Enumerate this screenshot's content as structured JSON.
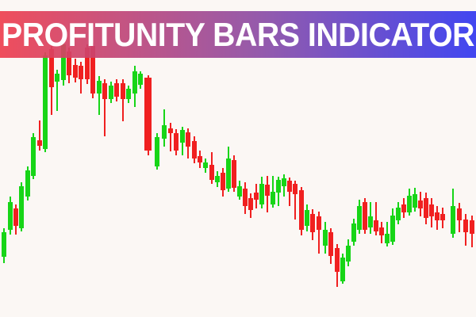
{
  "background_color": "#fbf7f4",
  "banner": {
    "title": "PROFITUNITY BARS INDICATOR",
    "text_color": "#ffffff",
    "gradient_left": "#ee3f4f",
    "gradient_mid": "#8b4da6",
    "gradient_right": "#3137f0"
  },
  "chart_data": {
    "type": "candlestick",
    "title": "PROFITUNITY BARS INDICATOR",
    "xlabel": "",
    "ylabel": "",
    "axes_visible": false,
    "grid": false,
    "legend": false,
    "up_color": "#17d517",
    "down_color": "#f02020",
    "candle_width": 6,
    "coords_note": "each candle = [x, wickTop, bodyTop, bodyBottom, wickBottom, color(g=up,r=down), optionalWidth] in pixel coords of the 600x400 frame, y measured from top",
    "candles": [
      [
        2,
        288,
        293,
        324,
        332,
        "g"
      ],
      [
        10,
        248,
        255,
        290,
        296,
        "g"
      ],
      [
        17,
        258,
        263,
        285,
        296,
        "r"
      ],
      [
        24,
        230,
        235,
        288,
        292,
        "g"
      ],
      [
        32,
        210,
        215,
        248,
        253,
        "g"
      ],
      [
        39,
        168,
        173,
        222,
        226,
        "g"
      ],
      [
        47,
        152,
        177,
        184,
        190,
        "r"
      ],
      [
        54,
        66,
        70,
        188,
        192,
        "g"
      ],
      [
        62,
        58,
        62,
        110,
        145,
        "r"
      ],
      [
        69,
        88,
        93,
        103,
        140,
        "g"
      ],
      [
        77,
        52,
        56,
        101,
        108,
        "g"
      ],
      [
        84,
        60,
        65,
        95,
        105,
        "r"
      ],
      [
        92,
        74,
        82,
        98,
        104,
        "r"
      ],
      [
        99,
        78,
        83,
        100,
        118,
        "r"
      ],
      [
        107,
        56,
        60,
        100,
        106,
        "r"
      ],
      [
        114,
        54,
        58,
        118,
        124,
        "r"
      ],
      [
        122,
        96,
        102,
        118,
        145,
        "g"
      ],
      [
        129,
        100,
        105,
        125,
        172,
        "r"
      ],
      [
        137,
        103,
        108,
        125,
        130,
        "g"
      ],
      [
        144,
        100,
        105,
        122,
        128,
        "r"
      ],
      [
        152,
        100,
        105,
        125,
        153,
        "r"
      ],
      [
        159,
        108,
        112,
        125,
        130,
        "g"
      ],
      [
        167,
        83,
        90,
        118,
        135,
        "g"
      ],
      [
        174,
        90,
        93,
        107,
        112,
        "g"
      ],
      [
        182,
        95,
        98,
        190,
        196,
        "r",
        9
      ],
      [
        195,
        168,
        173,
        210,
        214,
        "g"
      ],
      [
        204,
        138,
        158,
        175,
        185,
        "g"
      ],
      [
        212,
        155,
        162,
        168,
        191,
        "r"
      ],
      [
        219,
        163,
        168,
        190,
        196,
        "r"
      ],
      [
        227,
        160,
        164,
        180,
        196,
        "g"
      ],
      [
        234,
        162,
        167,
        185,
        200,
        "r"
      ],
      [
        242,
        172,
        178,
        200,
        206,
        "r"
      ],
      [
        249,
        190,
        197,
        205,
        212,
        "r"
      ],
      [
        256,
        200,
        205,
        212,
        218,
        "g"
      ],
      [
        264,
        192,
        208,
        227,
        232,
        "r"
      ],
      [
        271,
        216,
        222,
        230,
        236,
        "g"
      ],
      [
        278,
        212,
        218,
        240,
        248,
        "r"
      ],
      [
        285,
        185,
        200,
        238,
        242,
        "g"
      ],
      [
        292,
        196,
        202,
        237,
        242,
        "r"
      ],
      [
        299,
        228,
        235,
        248,
        252,
        "g"
      ],
      [
        306,
        230,
        238,
        260,
        270,
        "r"
      ],
      [
        313,
        244,
        250,
        265,
        275,
        "r"
      ],
      [
        320,
        232,
        243,
        252,
        263,
        "r"
      ],
      [
        327,
        223,
        232,
        258,
        263,
        "g"
      ],
      [
        334,
        222,
        233,
        247,
        268,
        "r"
      ],
      [
        341,
        222,
        242,
        258,
        262,
        "g"
      ],
      [
        348,
        223,
        227,
        243,
        260,
        "g"
      ],
      [
        355,
        220,
        225,
        235,
        248,
        "g"
      ],
      [
        362,
        224,
        228,
        242,
        260,
        "r"
      ],
      [
        369,
        228,
        232,
        245,
        277,
        "r"
      ],
      [
        377,
        236,
        240,
        290,
        297,
        "r"
      ],
      [
        384,
        258,
        265,
        285,
        292,
        "g"
      ],
      [
        391,
        264,
        270,
        293,
        303,
        "r"
      ],
      [
        399,
        267,
        273,
        290,
        320,
        "r"
      ],
      [
        407,
        280,
        290,
        310,
        320,
        "g"
      ],
      [
        414,
        288,
        293,
        323,
        333,
        "r"
      ],
      [
        422,
        308,
        313,
        343,
        362,
        "r"
      ],
      [
        429,
        320,
        325,
        355,
        358,
        "g"
      ],
      [
        436,
        302,
        310,
        330,
        336,
        "g"
      ],
      [
        443,
        276,
        282,
        305,
        310,
        "g"
      ],
      [
        450,
        252,
        260,
        290,
        295,
        "g"
      ],
      [
        457,
        250,
        255,
        290,
        295,
        "r"
      ],
      [
        464,
        255,
        273,
        287,
        295,
        "g"
      ],
      [
        471,
        255,
        278,
        292,
        297,
        "r"
      ],
      [
        478,
        280,
        287,
        297,
        307,
        "r"
      ],
      [
        485,
        280,
        295,
        307,
        311,
        "g"
      ],
      [
        492,
        263,
        272,
        305,
        309,
        "g"
      ],
      [
        499,
        255,
        262,
        278,
        283,
        "g"
      ],
      [
        506,
        250,
        258,
        268,
        275,
        "r"
      ],
      [
        513,
        238,
        247,
        268,
        272,
        "g"
      ],
      [
        520,
        237,
        245,
        262,
        267,
        "g"
      ],
      [
        527,
        242,
        253,
        263,
        273,
        "r"
      ],
      [
        534,
        243,
        250,
        275,
        283,
        "r"
      ],
      [
        541,
        250,
        258,
        273,
        287,
        "r"
      ],
      [
        548,
        260,
        268,
        278,
        290,
        "r"
      ],
      [
        555,
        262,
        270,
        278,
        288,
        "r"
      ],
      [
        568,
        238,
        260,
        295,
        300,
        "g"
      ],
      [
        576,
        256,
        263,
        278,
        293,
        "r"
      ],
      [
        584,
        270,
        277,
        293,
        310,
        "r"
      ],
      [
        592,
        272,
        278,
        295,
        312,
        "r"
      ]
    ]
  }
}
